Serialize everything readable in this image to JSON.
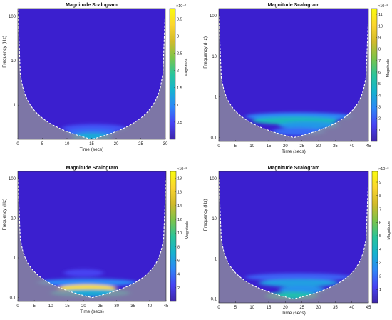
{
  "figure": {
    "panels": [
      {
        "id": "p1",
        "title": "Magnitude Scalogram",
        "xlabel": "Time (secs)",
        "ylabel": "Frequency (Hz)",
        "cbar_label": "Magnitude",
        "cbar_exp": "×10⁻⁷"
      },
      {
        "id": "p2",
        "title": "Magnitude Scalogram",
        "xlabel": "Time (secs)",
        "ylabel": "Frequency (Hz)",
        "cbar_label": "Magnitude",
        "cbar_exp": "×10⁻⁸"
      },
      {
        "id": "p3",
        "title": "Magnitude Scalogram",
        "xlabel": "Time (secs)",
        "ylabel": "Frequency (Hz)",
        "cbar_label": "Magnitude",
        "cbar_exp": "×10⁻⁸"
      },
      {
        "id": "p4",
        "title": "Magnitude Scalogram",
        "xlabel": "Time (secs)",
        "ylabel": "Frequency (Hz)",
        "cbar_label": "Magnitude",
        "cbar_exp": "×10⁻⁸"
      }
    ]
  },
  "colors": {
    "background_low": "#3b1fcf",
    "cone_shade": "#8f8f9a",
    "cone_line": "#ffffff",
    "colormap": [
      "#3e26a8",
      "#4743f4",
      "#2e87f7",
      "#16b2cf",
      "#2ac49a",
      "#7cc44a",
      "#d1ba2b",
      "#fbd52f",
      "#f9fb0e"
    ]
  },
  "chart_data": [
    {
      "type": "heatmap",
      "title": "Magnitude Scalogram",
      "xlabel": "Time (secs)",
      "ylabel": "Frequency (Hz)",
      "xlim": [
        0,
        30
      ],
      "xticks": [
        "0",
        "5",
        "10",
        "15",
        "20",
        "25",
        "30"
      ],
      "yscale": "log",
      "ylim": [
        0.17,
        150
      ],
      "yticks": [
        "1",
        "10",
        "100"
      ],
      "colorbar": {
        "label": "Magnitude",
        "exponent": "×10⁻⁷",
        "range": [
          0,
          3.8
        ],
        "ticks": [
          "0.5",
          "1",
          "1.5",
          "2",
          "2.5",
          "3",
          "3.5"
        ]
      },
      "cone_of_influence": true,
      "cone_min_freq": 0.17,
      "cone_half_width_sec": 15
    },
    {
      "type": "heatmap",
      "title": "Magnitude Scalogram",
      "xlabel": "Time (secs)",
      "ylabel": "Frequency (Hz)",
      "xlim": [
        0,
        45
      ],
      "xticks": [
        "0",
        "5",
        "10",
        "15",
        "20",
        "25",
        "30",
        "35",
        "40",
        "45"
      ],
      "yscale": "log",
      "ylim": [
        0.08,
        150
      ],
      "yticks": [
        "0.1",
        "1",
        "10",
        "100"
      ],
      "colorbar": {
        "label": "Magnitude",
        "exponent": "×10⁻⁸",
        "range": [
          0,
          11.5
        ],
        "ticks": [
          "1",
          "2",
          "3",
          "4",
          "5",
          "6",
          "7",
          "8",
          "9",
          "10",
          "11"
        ]
      },
      "cone_of_influence": true,
      "cone_min_freq": 0.1,
      "cone_half_width_sec": 22.5
    },
    {
      "type": "heatmap",
      "title": "Magnitude Scalogram",
      "xlabel": "Time (secs)",
      "ylabel": "Frequency (Hz)",
      "xlim": [
        0,
        45
      ],
      "xticks": [
        "0",
        "5",
        "10",
        "15",
        "20",
        "25",
        "30",
        "35",
        "40",
        "45"
      ],
      "yscale": "log",
      "ylim": [
        0.08,
        150
      ],
      "yticks": [
        "0.1",
        "1",
        "10",
        "100"
      ],
      "colorbar": {
        "label": "Magnitude",
        "exponent": "×10⁻⁸",
        "range": [
          0,
          19
        ],
        "ticks": [
          "2",
          "4",
          "6",
          "8",
          "10",
          "12",
          "14",
          "16",
          "18"
        ]
      },
      "cone_of_influence": true,
      "cone_min_freq": 0.1,
      "cone_half_width_sec": 22.5
    },
    {
      "type": "heatmap",
      "title": "Magnitude Scalogram",
      "xlabel": "Time (secs)",
      "ylabel": "Frequency (Hz)",
      "xlim": [
        0,
        45
      ],
      "xticks": [
        "0",
        "5",
        "10",
        "15",
        "20",
        "25",
        "30",
        "35",
        "40",
        "45"
      ],
      "yscale": "log",
      "ylim": [
        0.08,
        150
      ],
      "yticks": [
        "0.1",
        "1",
        "10",
        "100"
      ],
      "colorbar": {
        "label": "Magnitude",
        "exponent": "×10⁻⁸",
        "range": [
          0,
          9.8
        ],
        "ticks": [
          "1",
          "2",
          "3",
          "4",
          "5",
          "6",
          "7",
          "8",
          "9"
        ]
      },
      "cone_of_influence": true,
      "cone_min_freq": 0.1,
      "cone_half_width_sec": 22.5
    }
  ]
}
